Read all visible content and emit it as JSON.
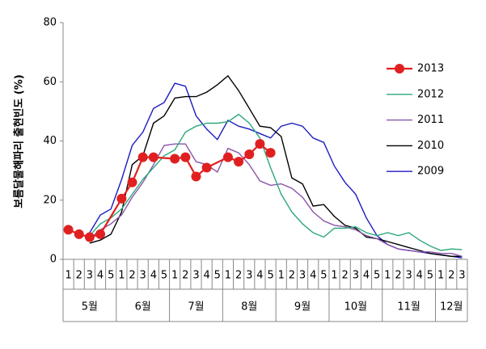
{
  "chart_data": {
    "type": "line",
    "y_label": "보름달물해파리 출현빈도 (%)",
    "categories": [
      "1",
      "2",
      "3",
      "4",
      "5",
      "1",
      "2",
      "3",
      "4",
      "5",
      "1",
      "2",
      "3",
      "4",
      "5",
      "1",
      "2",
      "3",
      "4",
      "5",
      "1",
      "2",
      "3",
      "4",
      "5",
      "1",
      "2",
      "3",
      "4",
      "5",
      "1",
      "2",
      "3",
      "4",
      "5",
      "1",
      "2",
      "3"
    ],
    "month_labels": [
      "5월",
      "6월",
      "7월",
      "8월",
      "9월",
      "10월",
      "11월",
      "12월"
    ],
    "ylim": [
      0,
      80
    ],
    "yticks": [
      0,
      20,
      40,
      60,
      80
    ],
    "legend": "right",
    "span_gaps": true,
    "series": [
      {
        "name": "2013",
        "color": "#e02020",
        "marker": true,
        "values": [
          10,
          8.5,
          7.5,
          8.5,
          null,
          20.5,
          26,
          34.5,
          34.5,
          null,
          34,
          34.5,
          28,
          31,
          null,
          34.5,
          33,
          35.5,
          39,
          36,
          null,
          null,
          null,
          null,
          null,
          null,
          null,
          null,
          null,
          null,
          null,
          null,
          null,
          null,
          null,
          null,
          null,
          null
        ]
      },
      {
        "name": "2012",
        "color": "#2ca87a",
        "marker": false,
        "values": [
          null,
          null,
          8,
          12,
          14,
          17,
          22,
          27,
          31,
          35,
          37,
          43,
          45,
          46,
          46,
          46.5,
          49,
          46,
          41,
          31,
          22,
          16,
          12,
          9,
          7.5,
          10.5,
          10.5,
          11,
          9,
          8,
          9,
          8,
          9,
          6.5,
          4.5,
          3,
          3.5,
          3.3
        ]
      },
      {
        "name": "2011",
        "color": "#8a55a8",
        "marker": false,
        "values": [
          null,
          null,
          7,
          10,
          12,
          15,
          21,
          26,
          32,
          38.5,
          39,
          39,
          33,
          32,
          29.5,
          37.5,
          36,
          32,
          26.5,
          25,
          25.5,
          24,
          21,
          16,
          13,
          11.5,
          11,
          10,
          8,
          7,
          5,
          3.5,
          3,
          2.5,
          2.5,
          2,
          2,
          1
        ]
      },
      {
        "name": "2010",
        "color": "#000000",
        "marker": false,
        "values": [
          null,
          null,
          5.5,
          6.5,
          8.5,
          16,
          32,
          35,
          46,
          48.5,
          54.5,
          55,
          55,
          56.5,
          59,
          62,
          57,
          51,
          45,
          44.5,
          41.5,
          27.5,
          25.5,
          18,
          18.5,
          14.5,
          11.5,
          10.5,
          7.5,
          7,
          6,
          5,
          4,
          3,
          2,
          1.5,
          1,
          1
        ]
      },
      {
        "name": "2009",
        "color": "#1c1cc0",
        "marker": false,
        "values": [
          null,
          null,
          9,
          15,
          17,
          27,
          38.5,
          43,
          51,
          53,
          59.5,
          58.5,
          48.5,
          44,
          40.5,
          47,
          45,
          44,
          42.5,
          41,
          45,
          46,
          45,
          41,
          39.5,
          31.5,
          26,
          22,
          14,
          8,
          5,
          3.5,
          3,
          2.5,
          2,
          1.5,
          1,
          0.5
        ]
      }
    ]
  }
}
